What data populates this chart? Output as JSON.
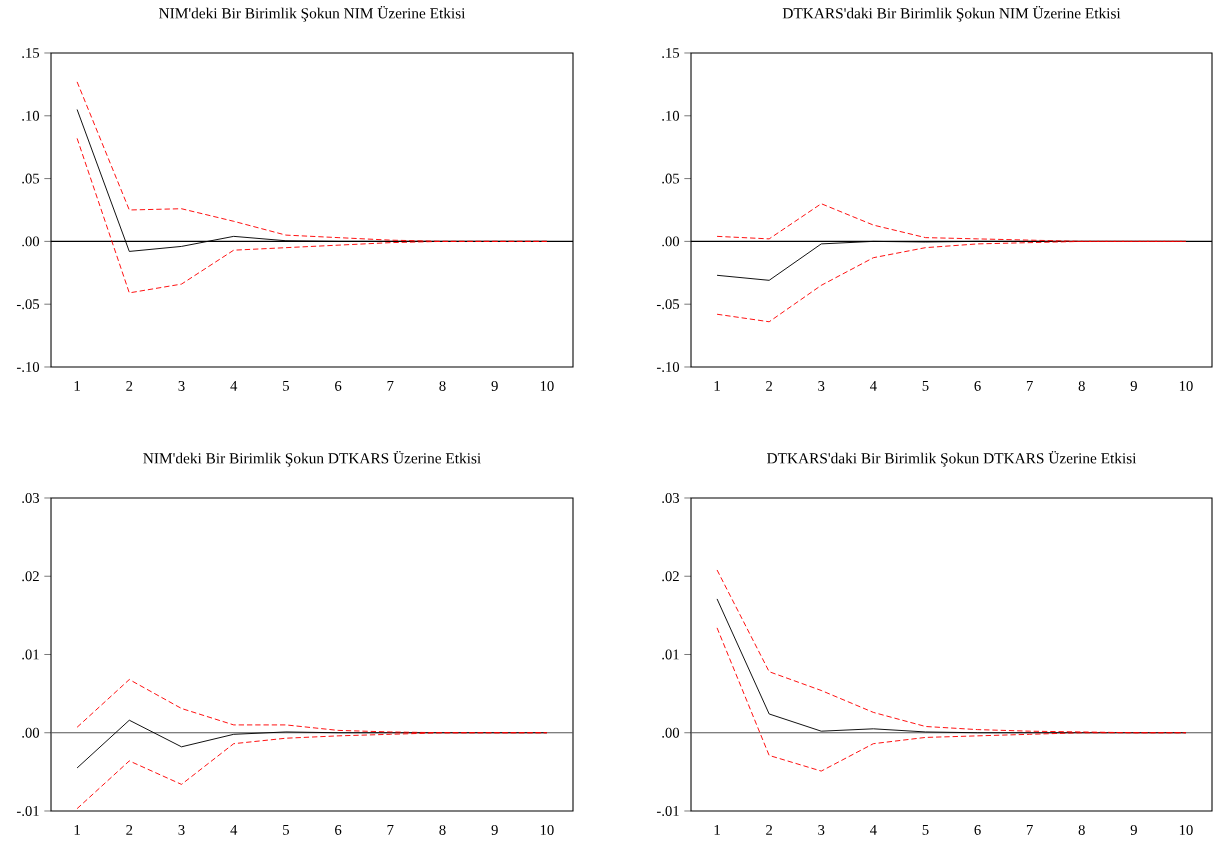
{
  "chart_data": [
    {
      "type": "line",
      "title": "NIM'deki Bir Birimlik Şokun NIM Üzerine Etkisi",
      "categories": [
        "1",
        "2",
        "3",
        "4",
        "5",
        "6",
        "7",
        "8",
        "9",
        "10"
      ],
      "series": [
        {
          "color": "#000000",
          "line_style": "solid",
          "values": [
            0.105,
            -0.008,
            -0.004,
            0.004,
            0.0005,
            0,
            0,
            0,
            0,
            0
          ]
        },
        {
          "color": "#ff0000",
          "line_style": "dashed",
          "values": [
            0.127,
            0.025,
            0.026,
            0.016,
            0.005,
            0.003,
            0.001,
            0,
            0,
            0
          ]
        },
        {
          "color": "#ff0000",
          "line_style": "dashed",
          "values": [
            0.082,
            -0.041,
            -0.034,
            -0.007,
            -0.005,
            -0.003,
            -0.001,
            0,
            0,
            0
          ]
        }
      ],
      "ylim": [
        -0.1,
        0.15
      ],
      "yticks": [
        {
          "value": -0.1,
          "label": "-.10"
        },
        {
          "value": -0.05,
          "label": "-.05"
        },
        {
          "value": 0,
          "label": ".00"
        },
        {
          "value": 0.05,
          "label": ".05"
        },
        {
          "value": 0.1,
          "label": ".10"
        },
        {
          "value": 0.15,
          "label": ".15"
        }
      ],
      "ref_lines": [
        {
          "axis": "y",
          "value": 0,
          "color": "#000000"
        }
      ]
    },
    {
      "type": "line",
      "title": "DTKARS'daki Bir Birimlik Şokun NIM Üzerine Etkisi",
      "categories": [
        "1",
        "2",
        "3",
        "4",
        "5",
        "6",
        "7",
        "8",
        "9",
        "10"
      ],
      "series": [
        {
          "color": "#000000",
          "line_style": "solid",
          "values": [
            -0.027,
            -0.031,
            -0.002,
            0,
            -0.0005,
            0,
            0,
            0,
            0,
            0
          ]
        },
        {
          "color": "#ff0000",
          "line_style": "dashed",
          "values": [
            0.004,
            0.002,
            0.03,
            0.013,
            0.003,
            0.002,
            0.001,
            0,
            0,
            0
          ]
        },
        {
          "color": "#ff0000",
          "line_style": "dashed",
          "values": [
            -0.058,
            -0.064,
            -0.035,
            -0.013,
            -0.005,
            -0.002,
            -0.001,
            0,
            0,
            0
          ]
        }
      ],
      "ylim": [
        -0.1,
        0.15
      ],
      "yticks": [
        {
          "value": -0.1,
          "label": "-.10"
        },
        {
          "value": -0.05,
          "label": "-.05"
        },
        {
          "value": 0,
          "label": ".00"
        },
        {
          "value": 0.05,
          "label": ".05"
        },
        {
          "value": 0.1,
          "label": ".10"
        },
        {
          "value": 0.15,
          "label": ".15"
        }
      ],
      "ref_lines": [
        {
          "axis": "y",
          "value": 0,
          "color": "#000000"
        }
      ]
    },
    {
      "type": "line",
      "title": "NIM'deki Bir Birimlik Şokun DTKARS Üzerine Etkisi",
      "categories": [
        "1",
        "2",
        "3",
        "4",
        "5",
        "6",
        "7",
        "8",
        "9",
        "10"
      ],
      "series": [
        {
          "color": "#000000",
          "line_style": "solid",
          "values": [
            -0.0045,
            0.0016,
            -0.0018,
            -0.0002,
            0.0001,
            0,
            0,
            0,
            0,
            0
          ]
        },
        {
          "color": "#ff0000",
          "line_style": "dashed",
          "values": [
            0.0007,
            0.0068,
            0.0031,
            0.001,
            0.001,
            0.0003,
            0.0001,
            0,
            0,
            0
          ]
        },
        {
          "color": "#ff0000",
          "line_style": "dashed",
          "values": [
            -0.0097,
            -0.0036,
            -0.0066,
            -0.0014,
            -0.0007,
            -0.0004,
            -0.0002,
            0,
            0,
            0
          ]
        }
      ],
      "ylim": [
        -0.01,
        0.03
      ],
      "yticks": [
        {
          "value": -0.01,
          "label": "-.01"
        },
        {
          "value": 0,
          "label": ".00"
        },
        {
          "value": 0.01,
          "label": ".01"
        },
        {
          "value": 0.02,
          "label": ".02"
        },
        {
          "value": 0.03,
          "label": ".03"
        }
      ],
      "ref_lines": [
        {
          "axis": "y",
          "value": 0,
          "color": "#555555"
        }
      ]
    },
    {
      "type": "line",
      "title": "DTKARS'daki Bir Birimlik Şokun DTKARS Üzerine Etkisi",
      "categories": [
        "1",
        "2",
        "3",
        "4",
        "5",
        "6",
        "7",
        "8",
        "9",
        "10"
      ],
      "series": [
        {
          "color": "#000000",
          "line_style": "solid",
          "values": [
            0.0171,
            0.0024,
            0.0002,
            0.0005,
            0.0001,
            0,
            0,
            0,
            0,
            0
          ]
        },
        {
          "color": "#ff0000",
          "line_style": "dashed",
          "values": [
            0.0208,
            0.0078,
            0.0054,
            0.0026,
            0.0008,
            0.0004,
            0.0002,
            0.0001,
            0,
            0
          ]
        },
        {
          "color": "#ff0000",
          "line_style": "dashed",
          "values": [
            0.0134,
            -0.0029,
            -0.0049,
            -0.0014,
            -0.0006,
            -0.0004,
            -0.0002,
            0,
            0,
            0
          ]
        }
      ],
      "ylim": [
        -0.01,
        0.03
      ],
      "yticks": [
        {
          "value": -0.01,
          "label": "-.01"
        },
        {
          "value": 0,
          "label": ".00"
        },
        {
          "value": 0.01,
          "label": ".01"
        },
        {
          "value": 0.02,
          "label": ".02"
        },
        {
          "value": 0.03,
          "label": ".03"
        }
      ],
      "ref_lines": [
        {
          "axis": "y",
          "value": 0,
          "color": "#555555"
        }
      ]
    }
  ]
}
